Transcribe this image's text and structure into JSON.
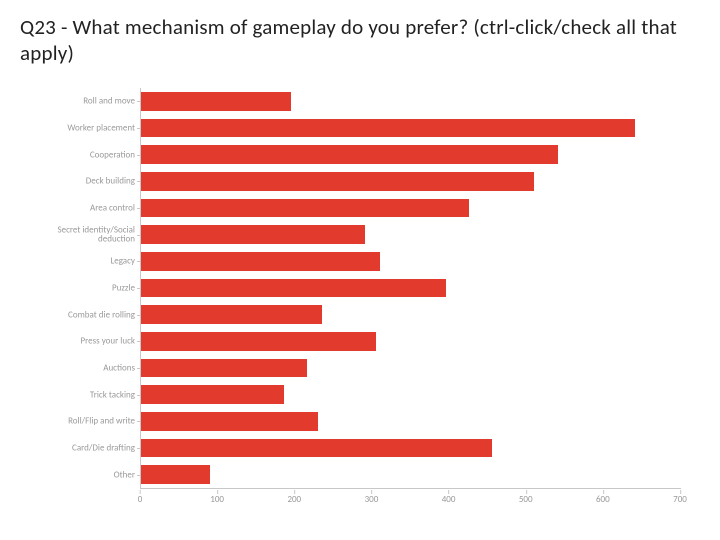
{
  "title": "Q23 - What mechanism of gameplay do you prefer? (ctrl-click/check all that apply)",
  "chart": {
    "type": "bar-horizontal",
    "bar_color": "#e23b2e",
    "background_color": "#ffffff",
    "axis_color": "#c8c8c8",
    "label_color": "#9a9a9a",
    "label_fontsize": 9,
    "title_fontsize": 21,
    "xmin": 0,
    "xmax": 700,
    "xtick_step": 100,
    "xticks": [
      0,
      100,
      200,
      300,
      400,
      500,
      600,
      700
    ],
    "categories": [
      "Roll and move",
      "Worker placement",
      "Cooperation",
      "Deck building",
      "Area control",
      "Secret identity/Social deduction",
      "Legacy",
      "Puzzle",
      "Combat die rolling",
      "Press your luck",
      "Auctions",
      "Trick tacking",
      "Roll/Flip and write",
      "Card/Die drafting",
      "Other"
    ],
    "values": [
      195,
      640,
      540,
      510,
      425,
      290,
      310,
      395,
      235,
      305,
      215,
      185,
      230,
      455,
      90
    ],
    "bar_fill_ratio": 0.7
  }
}
